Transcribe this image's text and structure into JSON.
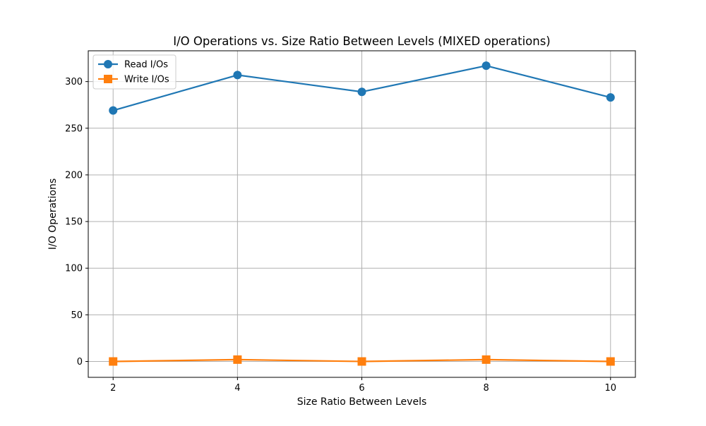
{
  "chart_data": {
    "type": "line",
    "title": "I/O Operations vs. Size Ratio Between Levels (MIXED operations)",
    "xlabel": "Size Ratio Between Levels",
    "ylabel": "I/O Operations",
    "x": [
      2,
      4,
      6,
      8,
      10
    ],
    "xticks": [
      2,
      4,
      6,
      8,
      10
    ],
    "yticks": [
      0,
      50,
      100,
      150,
      200,
      250,
      300
    ],
    "xlim": [
      1.6,
      10.4
    ],
    "ylim": [
      -17,
      333
    ],
    "grid": true,
    "legend_position": "top-left",
    "series": [
      {
        "name": "Read I/Os",
        "values": [
          269,
          307,
          289,
          317,
          283
        ],
        "color": "#1f77b4",
        "marker": "circle"
      },
      {
        "name": "Write I/Os",
        "values": [
          0,
          2,
          0,
          2,
          0
        ],
        "color": "#ff7f0e",
        "marker": "square"
      }
    ]
  }
}
